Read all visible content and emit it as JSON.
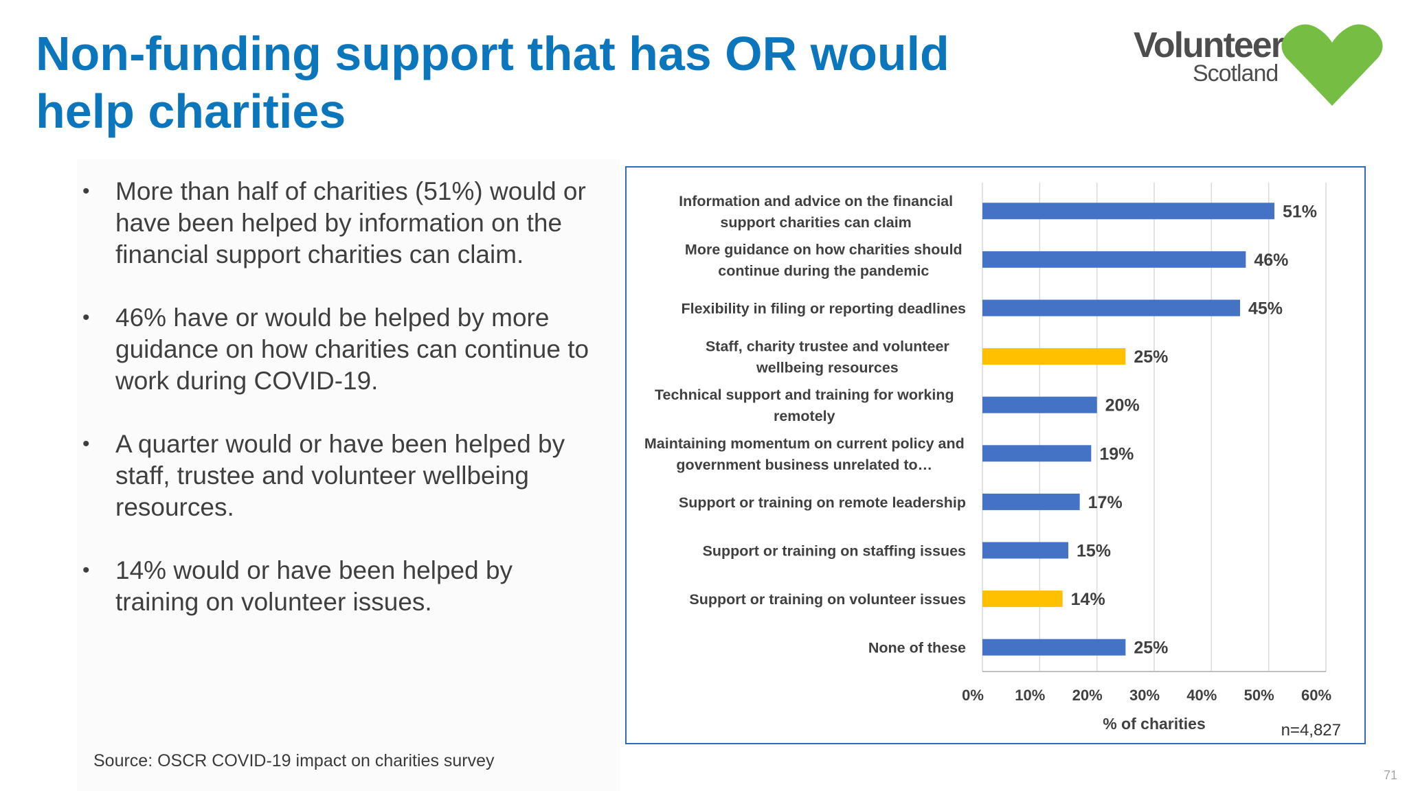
{
  "slide": {
    "title": "Non-funding support that has OR would help charities",
    "source": "Source: OSCR COVID-19 impact on charities survey",
    "page_number": "71"
  },
  "logo": {
    "word": "Volunteer",
    "sub": "Scotland",
    "heart_color": "#76bd43"
  },
  "bullets": [
    "More than half of charities (51%) would or have been helped by information on the financial support charities can claim.",
    "46% have or would be helped by more guidance on how charities can continue to work during COVID-19.",
    "A quarter would or have been helped by staff, trustee and volunteer wellbeing resources.",
    "14% would or have been helped by training on volunteer issues."
  ],
  "chart_data": {
    "type": "bar",
    "orientation": "horizontal",
    "categories": [
      "Information and advice on the financial support charities can claim",
      "More guidance on how charities should continue during the pandemic",
      "Flexibility in filing or reporting deadlines",
      "Staff, charity trustee and volunteer wellbeing resources",
      "Technical support and training for working remotely",
      "Maintaining momentum on current policy and government business unrelated to…",
      "Support or training on remote leadership",
      "Support or training on staffing issues",
      "Support or training on volunteer issues",
      "None of these"
    ],
    "values": [
      51,
      46,
      45,
      25,
      20,
      19,
      17,
      15,
      14,
      25
    ],
    "data_labels": [
      "51%",
      "46%",
      "45%",
      "25%",
      "20%",
      "19%",
      "17%",
      "15%",
      "14%",
      "25%"
    ],
    "highlighted": [
      false,
      false,
      false,
      true,
      false,
      false,
      false,
      false,
      true,
      false
    ],
    "colors": {
      "default": "#4472c4",
      "highlight": "#ffc000",
      "grid": "#d9d9d9",
      "text": "#404040"
    },
    "xlabel": "% of charities",
    "ylabel": "",
    "xlim": [
      0,
      60
    ],
    "xticks": [
      "0%",
      "10%",
      "20%",
      "30%",
      "40%",
      "50%",
      "60%"
    ],
    "grid": true,
    "note": "n=4,827"
  }
}
